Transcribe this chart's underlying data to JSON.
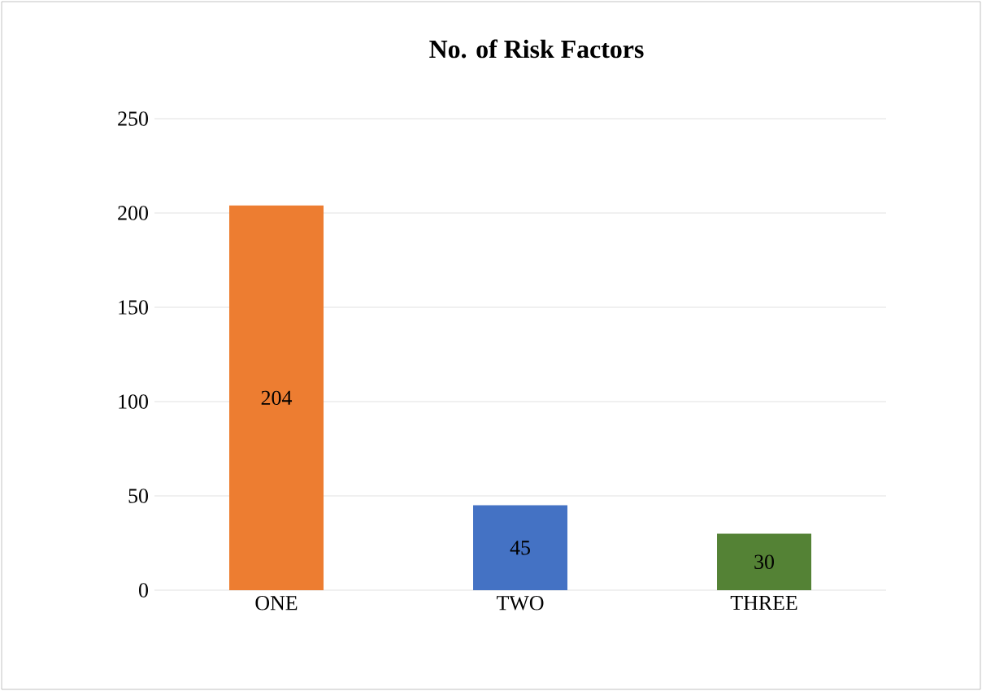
{
  "chart_data": {
    "type": "bar",
    "title": "No. of Risk Factors",
    "categories": [
      "ONE",
      "TWO",
      "THREE"
    ],
    "values": [
      204,
      45,
      30
    ],
    "colors": [
      "#ed7d31",
      "#4472c4",
      "#548235"
    ],
    "ylim": [
      0,
      250
    ],
    "yticks": [
      0,
      50,
      100,
      150,
      200,
      250
    ],
    "grid": "y",
    "data_labels": true
  }
}
